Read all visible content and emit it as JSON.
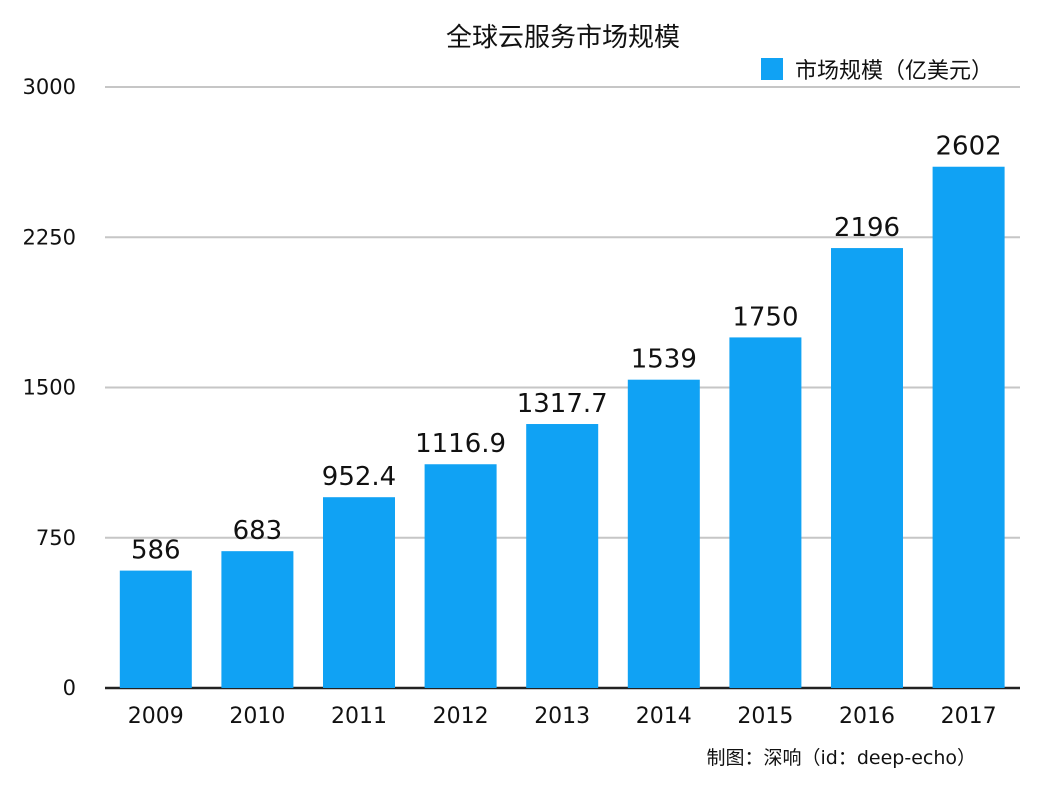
{
  "chart_data": {
    "type": "bar",
    "title": "全球云服务市场规模",
    "xlabel": "",
    "ylabel": "",
    "categories": [
      "2009",
      "2010",
      "2011",
      "2012",
      "2013",
      "2014",
      "2015",
      "2016",
      "2017"
    ],
    "series": [
      {
        "name": "市场规模（亿美元）",
        "values": [
          586,
          683,
          952.4,
          1116.9,
          1317.7,
          1539,
          1750,
          2196,
          2602
        ],
        "labels": [
          "586",
          "683",
          "952.4",
          "1116.9",
          "1317.7",
          "1539",
          "1750",
          "2196",
          "2602"
        ],
        "color": "#10a2f4"
      }
    ],
    "ylim": [
      0,
      3000
    ],
    "yticks": [
      "0",
      "750",
      "1500",
      "2250",
      "3000"
    ],
    "grid": true,
    "legend_position": "top-right"
  },
  "credit": "制图：深响（id：deep-echo）"
}
